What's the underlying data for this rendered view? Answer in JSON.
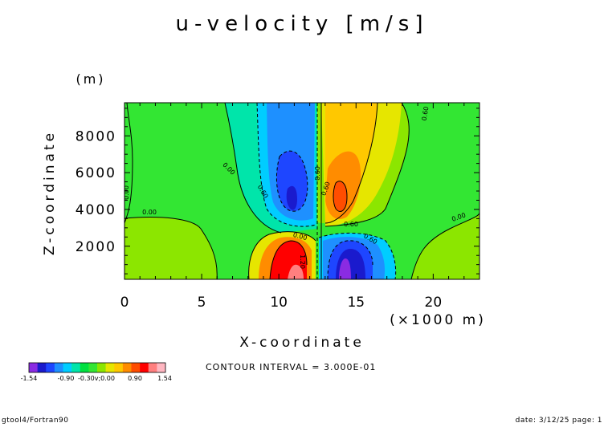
{
  "chart_data": {
    "type": "heatmap",
    "title": "u-velocity [m/s]",
    "xlabel": "X-coordinate",
    "ylabel": "Z-coordinate",
    "x_unit": "(×1000 m)",
    "y_unit": "(m)",
    "xlim": [
      0,
      23
    ],
    "ylim": [
      200,
      9800
    ],
    "x_ticks": [
      "0",
      "5",
      "10",
      "15",
      "20"
    ],
    "x_tick_values": [
      0,
      5,
      10,
      15,
      20
    ],
    "y_ticks": [
      "2000",
      "4000",
      "6000",
      "8000"
    ],
    "y_tick_values": [
      2000,
      4000,
      6000,
      8000
    ],
    "contour_labels": [
      "0.00",
      "0.00",
      "0.00",
      "0.00",
      "0.60",
      "0.60",
      "0.60",
      "0.60",
      "0.60",
      "1.20",
      "0.00",
      "0.60"
    ],
    "features": [
      {
        "kind": "negative-core",
        "x": 10.9,
        "z": 4600,
        "value": -1.5
      },
      {
        "kind": "positive-core",
        "x": 14.0,
        "z": 4700,
        "value": 1.5
      },
      {
        "kind": "positive-core",
        "x": 10.8,
        "z": 600,
        "value": 1.5
      },
      {
        "kind": "negative-core",
        "x": 14.2,
        "z": 700,
        "value": -1.5
      }
    ],
    "colorbar": {
      "colors": [
        "#8a2be2",
        "#1a1acd",
        "#1e46ff",
        "#1e90ff",
        "#00cdff",
        "#00e5aa",
        "#00e040",
        "#33e633",
        "#8ce600",
        "#e6e600",
        "#ffc800",
        "#ff8c00",
        "#ff4d00",
        "#ff0000",
        "#ff7f7f",
        "#ffb6c1"
      ],
      "labels": [
        "-1.54",
        "-0.90",
        "0.90",
        "1.54"
      ],
      "overlap_text": "-0.30v;0.00"
    },
    "contour_interval": "CONTOUR INTERVAL = 3.000E-01",
    "grid": false
  },
  "footer": {
    "left": "gtool4/Fortran90",
    "right": "date: 3/12/25 page: 1"
  }
}
